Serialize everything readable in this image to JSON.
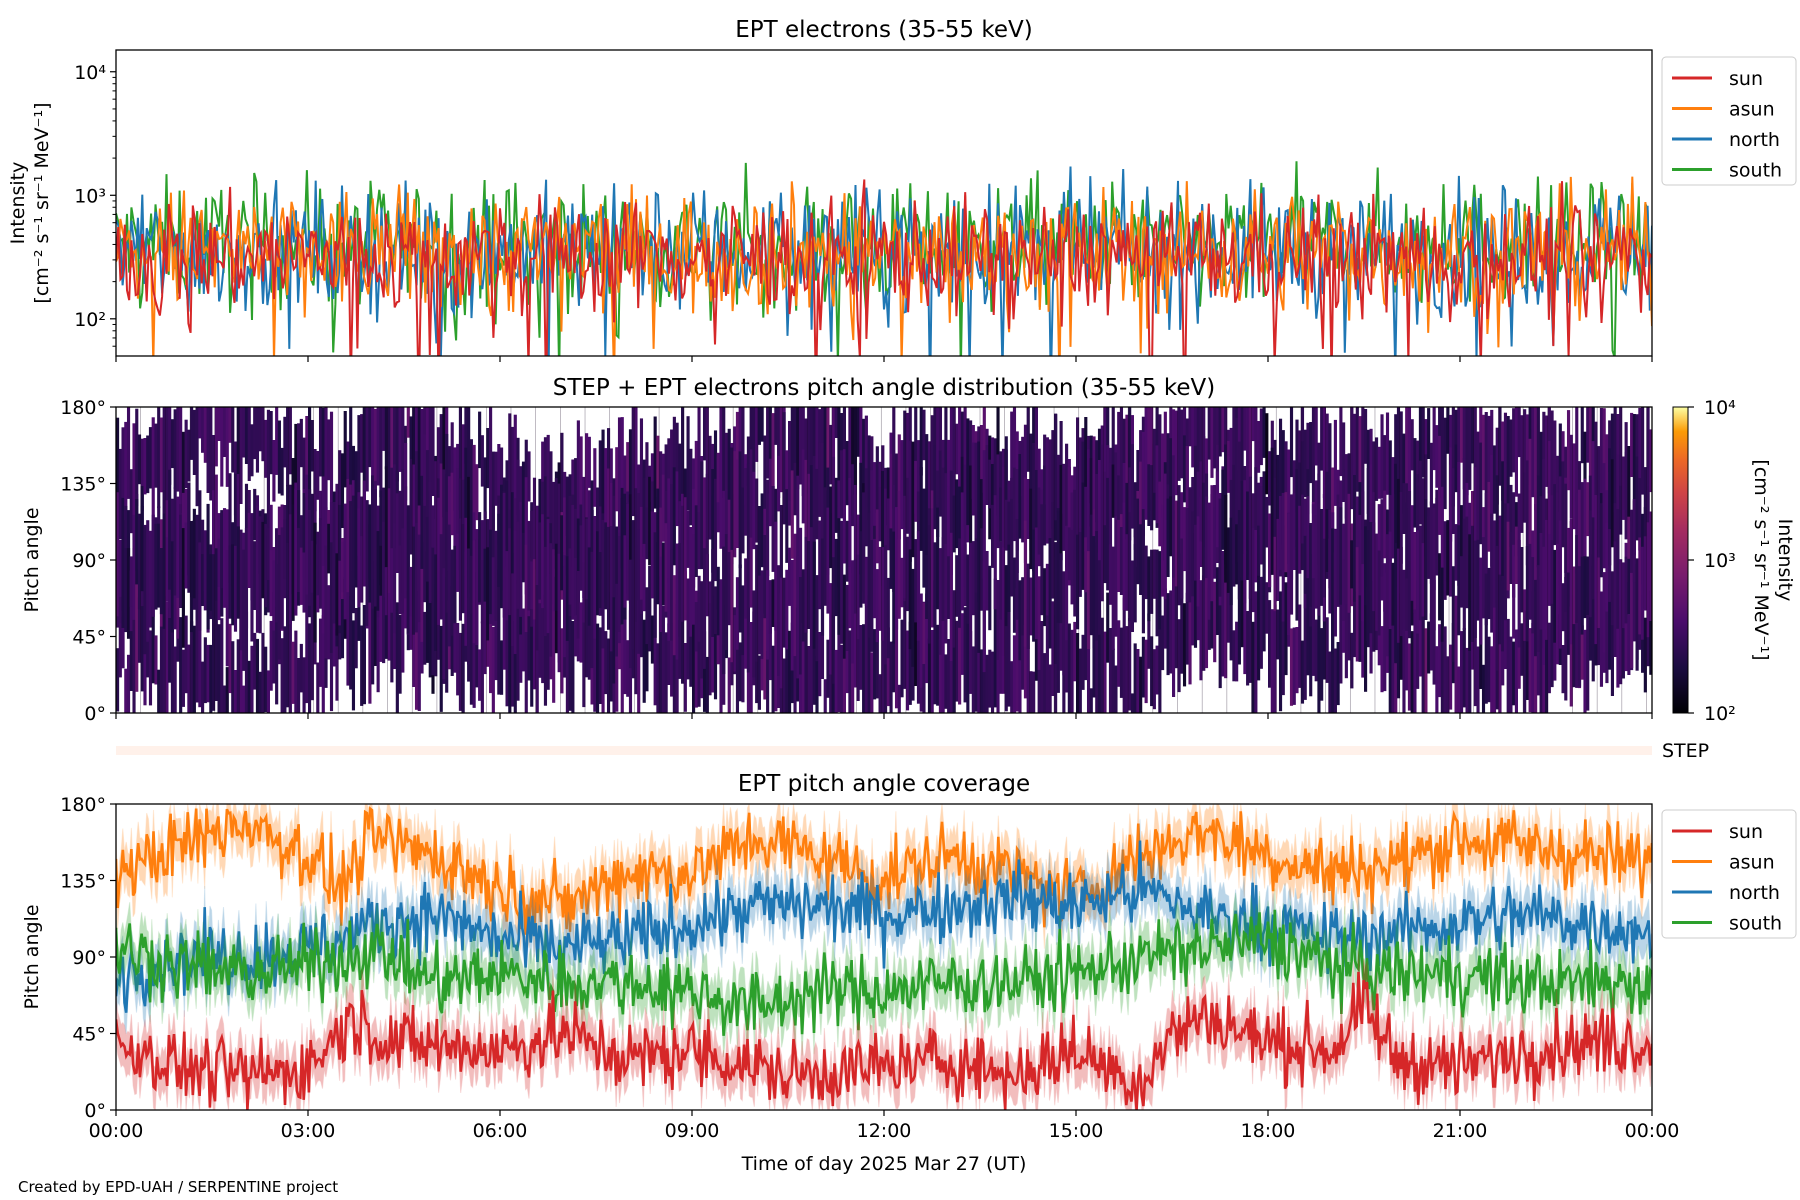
{
  "chart_data": [
    {
      "id": "panel-intensity",
      "type": "line",
      "title": "EPT electrons (35-55 keV)",
      "ylabel_lines": [
        "Intensity",
        "[cm⁻² s⁻¹ sr⁻¹ MeV⁻¹]"
      ],
      "yscale": "log",
      "ylim": [
        50,
        15000
      ],
      "yticks": [
        {
          "value": 100,
          "label": "10²"
        },
        {
          "value": 1000,
          "label": "10³"
        },
        {
          "value": 10000,
          "label": "10⁴"
        }
      ],
      "xlim_hours": [
        0,
        24
      ],
      "legend_position": "outside-right-top",
      "series": [
        {
          "name": "south",
          "color": "#2ca02c",
          "typical": 400,
          "spread": 0.55,
          "spikes": [
            {
              "t": 12.42,
              "v": 1250
            },
            {
              "t": 20.75,
              "v": 1230
            }
          ]
        },
        {
          "name": "north",
          "color": "#1f77b4",
          "typical": 360,
          "spread": 0.55,
          "spikes": [
            {
              "t": 9.03,
              "v": 1050
            },
            {
              "t": 10.4,
              "v": 1050
            }
          ]
        },
        {
          "name": "asun",
          "color": "#ff7f0e",
          "typical": 350,
          "spread": 0.55,
          "spikes": []
        },
        {
          "name": "sun",
          "color": "#d62728",
          "typical": 320,
          "spread": 0.5,
          "spikes": []
        }
      ],
      "legend_order": [
        "sun",
        "asun",
        "north",
        "south"
      ]
    },
    {
      "id": "panel-pad",
      "type": "heatmap",
      "title": "STEP + EPT electrons pitch angle distribution (35-55 keV)",
      "ylabel": "Pitch angle",
      "ylim": [
        0,
        180
      ],
      "yticks": [
        {
          "value": 0,
          "label": "0°"
        },
        {
          "value": 45,
          "label": "45°"
        },
        {
          "value": 90,
          "label": "90°"
        },
        {
          "value": 135,
          "label": "135°"
        },
        {
          "value": 180,
          "label": "180°"
        }
      ],
      "xlim_hours": [
        0,
        24
      ],
      "colorbar": {
        "scale": "log",
        "range": [
          100,
          10000
        ],
        "ticks": [
          {
            "value": 100,
            "label": "10²"
          },
          {
            "value": 1000,
            "label": "10³"
          },
          {
            "value": 10000,
            "label": "10⁴"
          }
        ],
        "label_lines": [
          "Intensity",
          "[cm⁻² s⁻¹ sr⁻¹ MeV⁻¹]"
        ],
        "colormap": "inferno"
      },
      "typical_intensity": 300
    },
    {
      "id": "panel-step",
      "type": "bar",
      "label": "STEP",
      "color": "#fff1ea",
      "xlim_hours": [
        0,
        24
      ]
    },
    {
      "id": "panel-coverage",
      "type": "line",
      "title": "EPT pitch angle coverage",
      "ylabel": "Pitch angle",
      "ylim": [
        0,
        180
      ],
      "yticks": [
        {
          "value": 0,
          "label": "0°"
        },
        {
          "value": 45,
          "label": "45°"
        },
        {
          "value": 90,
          "label": "90°"
        },
        {
          "value": 135,
          "label": "135°"
        },
        {
          "value": 180,
          "label": "180°"
        }
      ],
      "xlim_hours": [
        0,
        24
      ],
      "legend_position": "outside-right-top",
      "series": [
        {
          "name": "sun",
          "color": "#d62728",
          "band": 25,
          "anchors": [
            [
              0,
              40
            ],
            [
              1,
              25
            ],
            [
              2,
              20
            ],
            [
              3,
              25
            ],
            [
              3.7,
              55
            ],
            [
              4.3,
              40
            ],
            [
              6,
              35
            ],
            [
              7,
              45
            ],
            [
              8,
              30
            ],
            [
              9,
              35
            ],
            [
              10.5,
              20
            ],
            [
              12,
              25
            ],
            [
              13,
              30
            ],
            [
              14,
              20
            ],
            [
              15,
              35
            ],
            [
              16,
              15
            ],
            [
              16.5,
              45
            ],
            [
              17,
              55
            ],
            [
              18,
              40
            ],
            [
              19,
              35
            ],
            [
              19.5,
              60
            ],
            [
              20,
              30
            ],
            [
              21,
              25
            ],
            [
              22,
              35
            ],
            [
              23,
              40
            ],
            [
              24,
              40
            ]
          ]
        },
        {
          "name": "asun",
          "color": "#ff7f0e",
          "band": 25,
          "anchors": [
            [
              0,
              140
            ],
            [
              1,
              155
            ],
            [
              2,
              170
            ],
            [
              3,
              150
            ],
            [
              3.5,
              130
            ],
            [
              4,
              160
            ],
            [
              5,
              150
            ],
            [
              6,
              130
            ],
            [
              7,
              120
            ],
            [
              8,
              140
            ],
            [
              9,
              140
            ],
            [
              10,
              160
            ],
            [
              11,
              150
            ],
            [
              12,
              135
            ],
            [
              13,
              150
            ],
            [
              14,
              140
            ],
            [
              15,
              125
            ],
            [
              16,
              150
            ],
            [
              17,
              165
            ],
            [
              18,
              150
            ],
            [
              19,
              140
            ],
            [
              20,
              145
            ],
            [
              21,
              160
            ],
            [
              22,
              155
            ],
            [
              23,
              150
            ],
            [
              24,
              145
            ]
          ]
        },
        {
          "name": "north",
          "color": "#1f77b4",
          "band": 25,
          "anchors": [
            [
              0,
              80
            ],
            [
              1,
              90
            ],
            [
              2,
              90
            ],
            [
              3,
              95
            ],
            [
              3.5,
              100
            ],
            [
              4,
              110
            ],
            [
              5,
              115
            ],
            [
              6,
              100
            ],
            [
              7,
              95
            ],
            [
              8,
              100
            ],
            [
              9,
              110
            ],
            [
              10,
              120
            ],
            [
              11,
              120
            ],
            [
              12,
              115
            ],
            [
              13,
              120
            ],
            [
              14,
              125
            ],
            [
              15,
              120
            ],
            [
              16,
              130
            ],
            [
              17,
              115
            ],
            [
              18,
              110
            ],
            [
              19,
              100
            ],
            [
              20,
              105
            ],
            [
              21,
              110
            ],
            [
              22,
              115
            ],
            [
              23,
              110
            ],
            [
              24,
              105
            ]
          ]
        },
        {
          "name": "south",
          "color": "#2ca02c",
          "band": 25,
          "anchors": [
            [
              0,
              95
            ],
            [
              1,
              85
            ],
            [
              2,
              80
            ],
            [
              3,
              85
            ],
            [
              4,
              95
            ],
            [
              5,
              75
            ],
            [
              6,
              80
            ],
            [
              7,
              75
            ],
            [
              8,
              75
            ],
            [
              9,
              70
            ],
            [
              10,
              60
            ],
            [
              11,
              70
            ],
            [
              12,
              70
            ],
            [
              13,
              75
            ],
            [
              14,
              75
            ],
            [
              15,
              80
            ],
            [
              16,
              90
            ],
            [
              17,
              95
            ],
            [
              18,
              100
            ],
            [
              19,
              85
            ],
            [
              20,
              80
            ],
            [
              21,
              80
            ],
            [
              22,
              75
            ],
            [
              23,
              75
            ],
            [
              24,
              75
            ]
          ]
        }
      ],
      "legend_order": [
        "sun",
        "asun",
        "north",
        "south"
      ]
    }
  ],
  "xaxis": {
    "label": "Time of day 2025 Mar 27 (UT)",
    "tick_hours": [
      0,
      3,
      6,
      9,
      12,
      15,
      18,
      21,
      24
    ],
    "tick_labels": [
      "00:00",
      "03:00",
      "06:00",
      "09:00",
      "12:00",
      "15:00",
      "18:00",
      "21:00",
      "00:00"
    ]
  },
  "credit": "Created by EPD-UAH / SERPENTINE project"
}
